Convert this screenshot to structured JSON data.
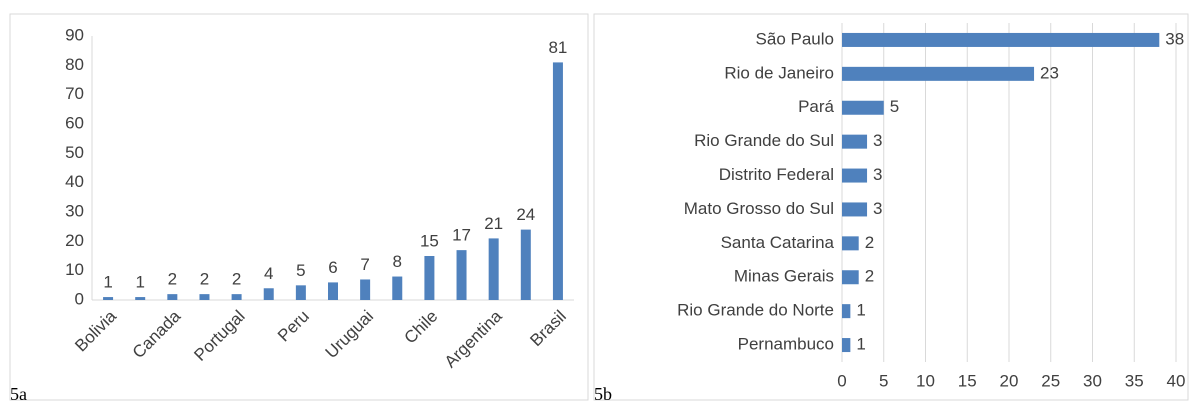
{
  "chart_data": [
    {
      "type": "bar",
      "annotation": "5a",
      "categories": [
        "Bolivia",
        null,
        "Canada",
        null,
        "Portugal",
        null,
        "Peru",
        null,
        "Uruguai",
        null,
        "Chile",
        null,
        "Argentina",
        null,
        "Brasil"
      ],
      "values": [
        1,
        1,
        2,
        2,
        2,
        4,
        5,
        6,
        7,
        8,
        15,
        17,
        21,
        24,
        81
      ],
      "color": "#4f81bd",
      "ylim": [
        0,
        90
      ],
      "yticks": [
        0,
        10,
        20,
        30,
        40,
        50,
        60,
        70,
        80,
        90
      ],
      "grid": false
    },
    {
      "type": "barh",
      "annotation": "5b",
      "categories": [
        "São Paulo",
        "Rio de Janeiro",
        "Pará",
        "Rio Grande do Sul",
        "Distrito Federal",
        "Mato Grosso do Sul",
        "Santa Catarina",
        "Minas Gerais",
        "Rio Grande do Norte",
        "Pernambuco"
      ],
      "values": [
        38,
        23,
        5,
        3,
        3,
        3,
        2,
        2,
        1,
        1
      ],
      "color": "#4f81bd",
      "xlim": [
        0,
        40
      ],
      "xticks": [
        0,
        5,
        10,
        15,
        20,
        25,
        30,
        35,
        40
      ],
      "grid": true
    }
  ]
}
